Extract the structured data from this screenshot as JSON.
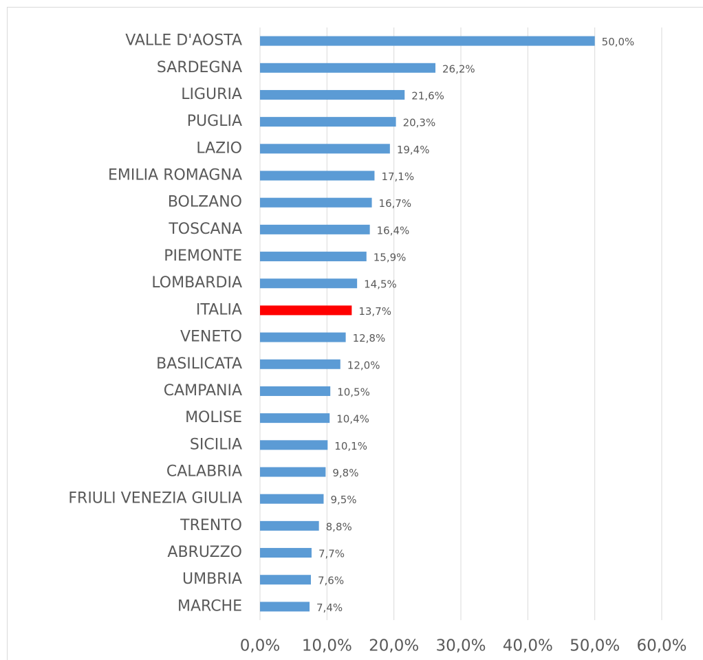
{
  "chart_data": {
    "type": "bar",
    "orientation": "horizontal",
    "categories": [
      "VALLE D'AOSTA",
      "SARDEGNA",
      "LIGURIA",
      "PUGLIA",
      "LAZIO",
      "EMILIA ROMAGNA",
      "BOLZANO",
      "TOSCANA",
      "PIEMONTE",
      "LOMBARDIA",
      "ITALIA",
      "VENETO",
      "BASILICATA",
      "CAMPANIA",
      "MOLISE",
      "SICILIA",
      "CALABRIA",
      "FRIULI VENEZIA GIULIA",
      "TRENTO",
      "ABRUZZO",
      "UMBRIA",
      "MARCHE"
    ],
    "values": [
      50.0,
      26.2,
      21.6,
      20.3,
      19.4,
      17.1,
      16.7,
      16.4,
      15.9,
      14.5,
      13.7,
      12.8,
      12.0,
      10.5,
      10.4,
      10.1,
      9.8,
      9.5,
      8.8,
      7.7,
      7.6,
      7.4
    ],
    "value_labels": [
      "50,0%",
      "26,2%",
      "21,6%",
      "20,3%",
      "19,4%",
      "17,1%",
      "16,7%",
      "16,4%",
      "15,9%",
      "14,5%",
      "13,7%",
      "12,8%",
      "12,0%",
      "10,5%",
      "10,4%",
      "10,1%",
      "9,8%",
      "9,5%",
      "8,8%",
      "7,7%",
      "7,6%",
      "7,4%"
    ],
    "colors": [
      "#5b9bd5",
      "#5b9bd5",
      "#5b9bd5",
      "#5b9bd5",
      "#5b9bd5",
      "#5b9bd5",
      "#5b9bd5",
      "#5b9bd5",
      "#5b9bd5",
      "#5b9bd5",
      "#ff0000",
      "#5b9bd5",
      "#5b9bd5",
      "#5b9bd5",
      "#5b9bd5",
      "#5b9bd5",
      "#5b9bd5",
      "#5b9bd5",
      "#5b9bd5",
      "#5b9bd5",
      "#5b9bd5",
      "#5b9bd5"
    ],
    "xlim": [
      0,
      60
    ],
    "xticks": [
      {
        "value": 0,
        "label": "0,0%"
      },
      {
        "value": 10,
        "label": "10,0%"
      },
      {
        "value": 20,
        "label": "20,0%"
      },
      {
        "value": 30,
        "label": "30,0%"
      },
      {
        "value": 40,
        "label": "40,0%"
      },
      {
        "value": 50,
        "label": "50,0%"
      },
      {
        "value": 60,
        "label": "60,0%"
      }
    ],
    "grid": true
  }
}
